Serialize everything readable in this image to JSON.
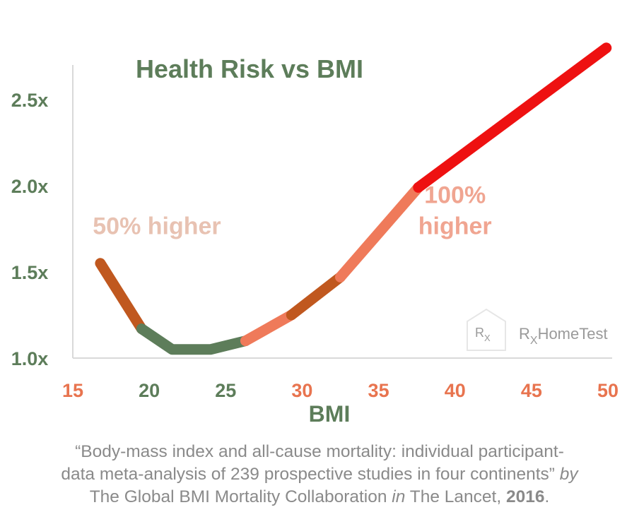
{
  "chart_data": {
    "type": "line",
    "title": "Health Risk vs BMI",
    "xlabel": "BMI",
    "ylabel": "",
    "xlim": [
      15,
      50
    ],
    "ylim": [
      1.0,
      2.6
    ],
    "x_ticks": [
      15,
      20,
      25,
      30,
      35,
      40,
      45,
      50
    ],
    "y_ticks": [
      1.0,
      1.5,
      2.0,
      2.5
    ],
    "y_tick_labels": [
      "1.0x",
      "1.5x",
      "2.0x",
      "2.5x"
    ],
    "grid": false,
    "segments": [
      {
        "color": "#c0581f",
        "points": [
          [
            16.8,
            1.55
          ],
          [
            19.5,
            1.17
          ]
        ]
      },
      {
        "color": "#5d7d5a",
        "points": [
          [
            19.5,
            1.17
          ],
          [
            21.5,
            1.05
          ],
          [
            24,
            1.05
          ],
          [
            26.3,
            1.1
          ]
        ]
      },
      {
        "color": "#ef7a5a",
        "points": [
          [
            26.3,
            1.1
          ],
          [
            29.3,
            1.25
          ]
        ]
      },
      {
        "color": "#c0581f",
        "points": [
          [
            29.3,
            1.25
          ],
          [
            32.5,
            1.47
          ]
        ]
      },
      {
        "color": "#ef7a5a",
        "points": [
          [
            32.5,
            1.47
          ],
          [
            37.6,
            1.99
          ]
        ]
      },
      {
        "color": "#ee1111",
        "points": [
          [
            37.6,
            1.99
          ],
          [
            49.9,
            2.8
          ]
        ]
      }
    ],
    "annotations": [
      {
        "text": "50% higher",
        "x": 20.5,
        "y": 1.72,
        "color": "#e8c2b2"
      },
      {
        "text": "100%",
        "x": 40,
        "y": 1.9,
        "color": "#f0a591"
      },
      {
        "text": "higher",
        "x": 40,
        "y": 1.72,
        "color": "#f0a591"
      }
    ],
    "colors": {
      "title": "#5d7d5a",
      "y_tick": "#5d7d5a",
      "x_tick_green": "#5d7d5a",
      "x_tick_orange": "#e8744f",
      "axis": "#d9d9d9",
      "xlabel": "#5d7d5a",
      "logo": "#9a9a9a"
    },
    "x_tick_color_keys": [
      "x_tick_orange",
      "x_tick_green",
      "x_tick_green",
      "x_tick_orange",
      "x_tick_orange",
      "x_tick_orange",
      "x_tick_orange",
      "x_tick_orange"
    ]
  },
  "logo": {
    "house_text": "R",
    "house_sub": "X",
    "brand_r": "R",
    "brand_x": "X",
    "brand_rest": "HomeTest"
  },
  "caption": {
    "line1": "“Body-mass index and all-cause mortality: individual participant-",
    "line2a": "data meta-analysis of 239 prospective studies in four continents” ",
    "line2b": "by",
    "line3a": "The Global BMI Mortality Collaboration ",
    "line3b": "in",
    "line3c": " The Lancet, ",
    "line3d": "2016",
    "line3e": "."
  }
}
